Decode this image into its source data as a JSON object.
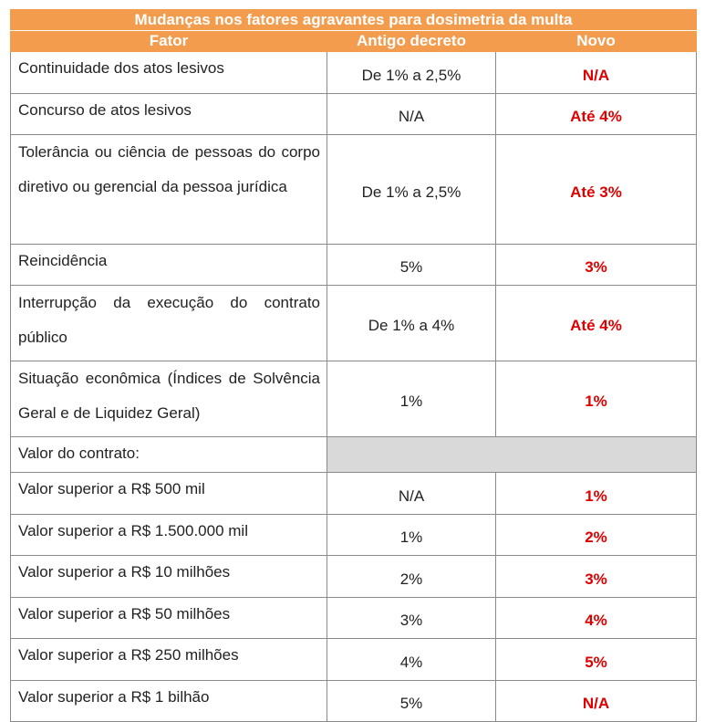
{
  "title": "Mudanças nos fatores agravantes para dosimetria da multa",
  "headers": {
    "fator": "Fator",
    "antigo": "Antigo decreto",
    "novo": "Novo"
  },
  "rows": [
    {
      "fator": "Continuidade dos atos lesivos",
      "antigo": "De 1% a 2,5%",
      "novo": "N/A"
    },
    {
      "fator": "Concurso de atos lesivos",
      "antigo": "N/A",
      "novo": "Até 4%"
    },
    {
      "fator": "Tolerância ou ciência de pessoas do corpo diretivo ou gerencial da pessoa jurídica",
      "antigo": "De 1% a 2,5%",
      "novo": "Até 3%"
    },
    {
      "fator": "Reincidência",
      "antigo": "5%",
      "novo": "3%"
    },
    {
      "fator": "Interrupção da execução do contrato público",
      "antigo": "De 1% a 4%",
      "novo": "Até 4%"
    },
    {
      "fator": "Situação econômica (Índices de Solvência Geral e de Liquidez Geral)",
      "antigo": "1%",
      "novo": "1%"
    },
    {
      "fator": "Valor do contrato:",
      "antigo": "",
      "novo": ""
    },
    {
      "fator": "Valor superior a R$ 500 mil",
      "antigo": "N/A",
      "novo": "1%"
    },
    {
      "fator": "Valor superior a R$ 1.500.000 mil",
      "antigo": "1%",
      "novo": "2%"
    },
    {
      "fator": "Valor superior a R$ 10 milhões",
      "antigo": "2%",
      "novo": "3%"
    },
    {
      "fator": "Valor superior a R$ 50 milhões",
      "antigo": "3%",
      "novo": "4%"
    },
    {
      "fator": "Valor superior a R$ 250 milhões",
      "antigo": "4%",
      "novo": "5%"
    },
    {
      "fator": "Valor superior a R$ 1 bilhão",
      "antigo": "5%",
      "novo": "N/A"
    }
  ],
  "colors": {
    "header_bg": "#f49c4e",
    "header_text": "#ffffff",
    "novo_text": "#e00000",
    "section_fill": "#d9d9d9"
  }
}
